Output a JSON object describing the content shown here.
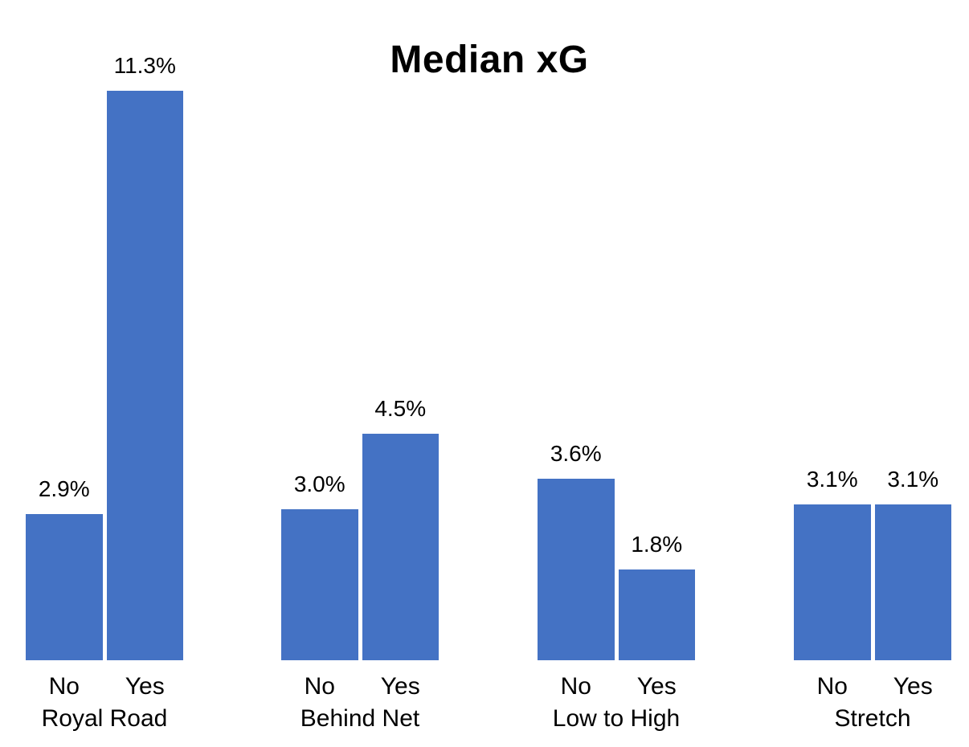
{
  "page": {
    "background_color": "#ffffff",
    "text_color": "#000000"
  },
  "chart_data": {
    "type": "bar",
    "title": "Median xG",
    "xlabel": "",
    "ylabel": "",
    "ylim": [
      0,
      12
    ],
    "grid": false,
    "legend_position": "none",
    "axes_visible": false,
    "bar_color": "#4472C4",
    "value_suffix": "%",
    "groups": [
      {
        "label": "Royal Road",
        "bars": [
          {
            "category": "No",
            "value": 2.9,
            "value_label": "2.9%"
          },
          {
            "category": "Yes",
            "value": 11.3,
            "value_label": "11.3%"
          }
        ]
      },
      {
        "label": "Behind Net",
        "bars": [
          {
            "category": "No",
            "value": 3.0,
            "value_label": "3.0%"
          },
          {
            "category": "Yes",
            "value": 4.5,
            "value_label": "4.5%"
          }
        ]
      },
      {
        "label": "Low to High",
        "bars": [
          {
            "category": "No",
            "value": 3.6,
            "value_label": "3.6%"
          },
          {
            "category": "Yes",
            "value": 1.8,
            "value_label": "1.8%"
          }
        ]
      },
      {
        "label": "Stretch",
        "bars": [
          {
            "category": "No",
            "value": 3.1,
            "value_label": "3.1%"
          },
          {
            "category": "Yes",
            "value": 3.1,
            "value_label": "3.1%"
          }
        ]
      }
    ]
  }
}
